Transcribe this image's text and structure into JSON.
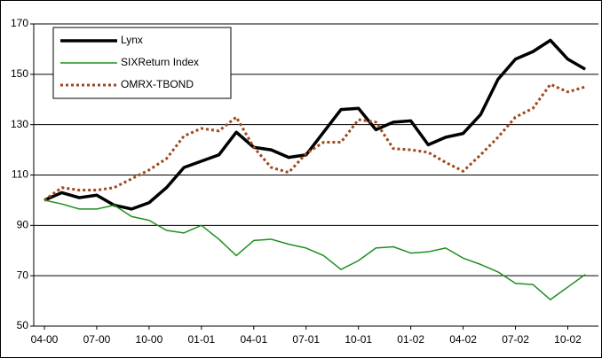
{
  "chart_data": {
    "type": "line",
    "categories": [
      "04-00",
      null,
      null,
      "07-00",
      null,
      null,
      "10-00",
      null,
      null,
      "01-01",
      null,
      null,
      "04-01",
      null,
      null,
      "07-01",
      null,
      null,
      "10-01",
      null,
      null,
      "01-02",
      null,
      null,
      "04-02",
      null,
      null,
      "07-02",
      null,
      null,
      "10-02",
      null
    ],
    "series": [
      {
        "name": "Lynx",
        "color": "#000000",
        "values": [
          100,
          103,
          101,
          102,
          98,
          96.5,
          99,
          105,
          113,
          115.5,
          118,
          127,
          121,
          120,
          117,
          118,
          127,
          136,
          136.5,
          128,
          131,
          131.5,
          122,
          125,
          126.5,
          134,
          148,
          156,
          159,
          163.5,
          156,
          152
        ]
      },
      {
        "name": "SIXReturn Index",
        "color": "#1e8f1e",
        "values": [
          100,
          98.5,
          96.5,
          96.5,
          98,
          93.5,
          92,
          88,
          87,
          90,
          84.5,
          78,
          84,
          84.5,
          82.5,
          81,
          78,
          72.5,
          76,
          81,
          81.5,
          79,
          79.5,
          81,
          77,
          74.5,
          71.5,
          67,
          66.5,
          60.5,
          65.5,
          70.5
        ]
      },
      {
        "name": "OMRX-TBOND",
        "color": "#a0481a",
        "values": [
          100,
          105,
          104,
          104,
          105,
          108.5,
          112,
          116.5,
          125.5,
          128.5,
          127.5,
          133,
          121,
          113,
          111,
          118.5,
          123,
          123,
          132,
          131,
          120.5,
          120,
          119,
          115,
          111.5,
          118,
          125,
          133,
          136.5,
          146,
          143,
          145
        ]
      }
    ],
    "ylim": [
      50,
      170
    ],
    "yticks": [
      50,
      70,
      90,
      110,
      130,
      150,
      170
    ],
    "grid": true,
    "legend": "upper left"
  }
}
